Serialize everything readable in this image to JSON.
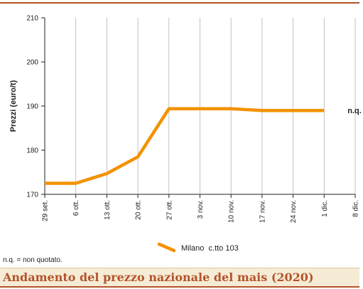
{
  "chart_data": {
    "type": "line",
    "title": "Andamento del prezzo nazionale del mais (2020)",
    "ylabel": "Prezzi (euro/t)",
    "xlabel": "",
    "categories": [
      "29 set.",
      "6 ott.",
      "13 ott.",
      "20 ott.",
      "27 ott.",
      "3 nov.",
      "10 nov.",
      "17 nov.",
      "24 nov.",
      "1 dic.",
      "8 dic."
    ],
    "ylim": [
      170,
      210
    ],
    "yticks": [
      170,
      180,
      190,
      200,
      210
    ],
    "grid": "vertical",
    "legend_position": "bottom-center",
    "series": [
      {
        "name": "Milano  c.tto 103",
        "color": "#f39200",
        "values": [
          172.5,
          172.5,
          174.7,
          178.5,
          189.4,
          189.4,
          189.4,
          189.0,
          189.0,
          189.0,
          null
        ]
      }
    ],
    "annotations": [
      {
        "text": "n.q.",
        "category": "8 dic.",
        "y": 189.0
      }
    ]
  },
  "footnote": "n.q. = non quotato.",
  "colors": {
    "accent": "#b4532a",
    "caption_bg": "#f6ecd6",
    "line": "#f39200"
  }
}
